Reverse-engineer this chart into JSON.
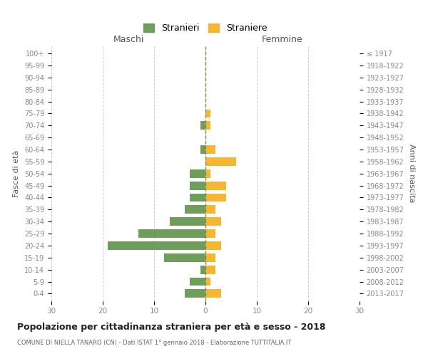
{
  "age_groups_bottom_to_top": [
    "0-4",
    "5-9",
    "10-14",
    "15-19",
    "20-24",
    "25-29",
    "30-34",
    "35-39",
    "40-44",
    "45-49",
    "50-54",
    "55-59",
    "60-64",
    "65-69",
    "70-74",
    "75-79",
    "80-84",
    "85-89",
    "90-94",
    "95-99",
    "100+"
  ],
  "birth_years_bottom_to_top": [
    "2013-2017",
    "2008-2012",
    "2003-2007",
    "1998-2002",
    "1993-1997",
    "1988-1992",
    "1983-1987",
    "1978-1982",
    "1973-1977",
    "1968-1972",
    "1963-1967",
    "1958-1962",
    "1953-1957",
    "1948-1952",
    "1943-1947",
    "1938-1942",
    "1933-1937",
    "1928-1932",
    "1923-1927",
    "1918-1922",
    "≤ 1917"
  ],
  "maschi_bottom_to_top": [
    4,
    3,
    1,
    8,
    19,
    13,
    7,
    4,
    3,
    3,
    3,
    0,
    1,
    0,
    1,
    0,
    0,
    0,
    0,
    0,
    0
  ],
  "femmine_bottom_to_top": [
    3,
    1,
    2,
    2,
    3,
    2,
    3,
    2,
    4,
    4,
    1,
    6,
    2,
    0,
    1,
    1,
    0,
    0,
    0,
    0,
    0
  ],
  "color_maschi": "#6d9e5a",
  "color_femmine": "#f5b731",
  "title": "Popolazione per cittadinanza straniera per età e sesso - 2018",
  "subtitle": "COMUNE DI NIELLA TANARO (CN) - Dati ISTAT 1° gennaio 2018 - Elaborazione TUTTITALIA.IT",
  "xlabel_left": "Maschi",
  "xlabel_right": "Femmine",
  "ylabel_left": "Fasce di età",
  "ylabel_right": "Anni di nascita",
  "legend_maschi": "Stranieri",
  "legend_femmine": "Straniere",
  "xlim": 30,
  "background_color": "#ffffff",
  "grid_color": "#cccccc",
  "axis_label_color": "#555555",
  "tick_color": "#888888",
  "dashed_line_color": "#888855"
}
